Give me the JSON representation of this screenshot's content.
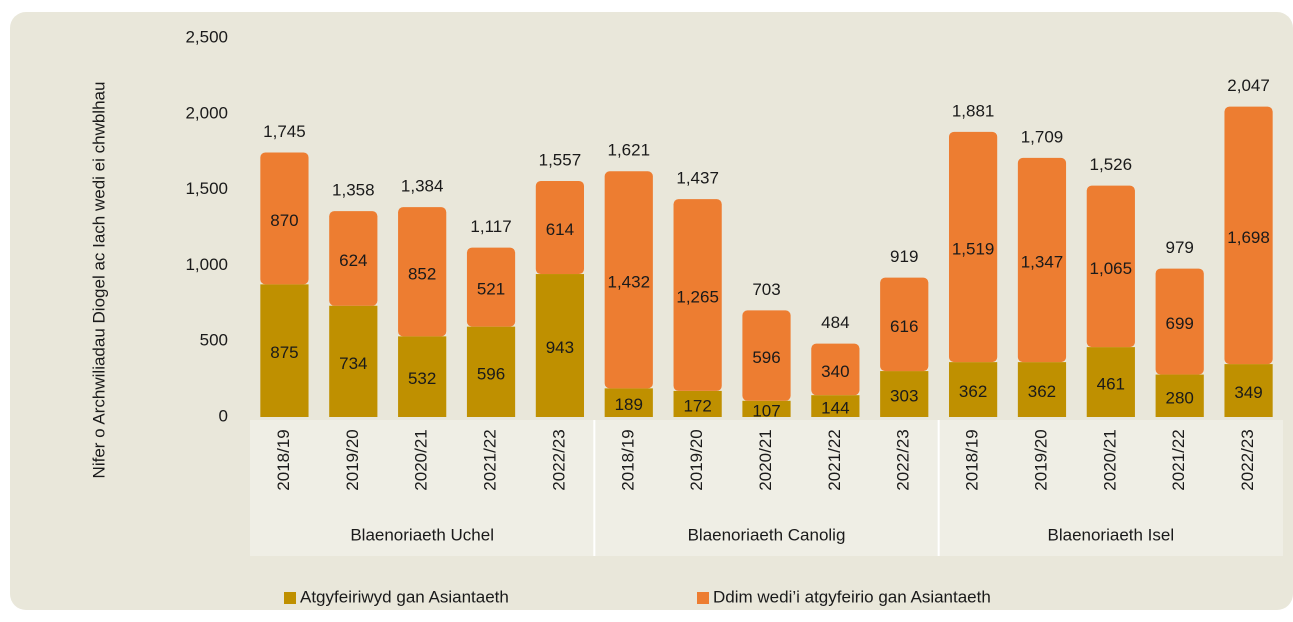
{
  "chart_data": {
    "type": "stacked_bar",
    "y_label": "Nifer o Archwiliadau Diogel ac Iach wedi ei chwblhau",
    "groups": [
      {
        "label": "Blaenoriaeth Uchel",
        "categories": [
          "2018/19",
          "2019/20",
          "2020/21",
          "2021/22",
          "2022/23"
        ]
      },
      {
        "label": "Blaenoriaeth Canolig",
        "categories": [
          "2018/19",
          "2019/20",
          "2020/21",
          "2021/22",
          "2022/23"
        ]
      },
      {
        "label": "Blaenoriaeth Isel",
        "categories": [
          "2018/19",
          "2019/20",
          "2020/21",
          "2021/22",
          "2022/23"
        ]
      }
    ],
    "series": [
      {
        "name": "Atgyfeiriwyd gan Asiantaeth",
        "color": "#bf9000",
        "values": [
          875,
          734,
          532,
          596,
          943,
          189,
          172,
          107,
          144,
          303,
          362,
          362,
          461,
          280,
          349
        ]
      },
      {
        "name": "Ddim wedi’i atgyfeirio gan Asiantaeth",
        "color": "#ed7d31",
        "values": [
          870,
          624,
          852,
          521,
          614,
          1432,
          1265,
          596,
          340,
          616,
          1519,
          1347,
          1065,
          699,
          1698
        ],
        "value_labels": [
          "870",
          "624",
          "852",
          "521",
          "614",
          "1,432",
          "1,265",
          "596",
          "340",
          "616",
          "1,519",
          "1,347",
          "1,065",
          "699",
          "1,698"
        ]
      }
    ],
    "totals": {
      "values": [
        1745,
        1358,
        1384,
        1117,
        1557,
        1621,
        1437,
        703,
        484,
        919,
        1881,
        1709,
        1526,
        979,
        2047
      ],
      "value_labels": [
        "1,745",
        "1,358",
        "1,384",
        "1,117",
        "1,557",
        "1,621",
        "1,437",
        "703",
        "484",
        "919",
        "1,881",
        "1,709",
        "1,526",
        "979",
        "2,047"
      ]
    },
    "ylim": [
      0,
      2500
    ],
    "yticks": [
      0,
      500,
      {
        "value": 1000,
        "label": "1,000"
      },
      {
        "value": 1500,
        "label": "1,500"
      },
      {
        "value": 2000,
        "label": "2,000"
      },
      {
        "value": 2500,
        "label": "2,500"
      }
    ],
    "grid": false,
    "legend": "bottom"
  }
}
